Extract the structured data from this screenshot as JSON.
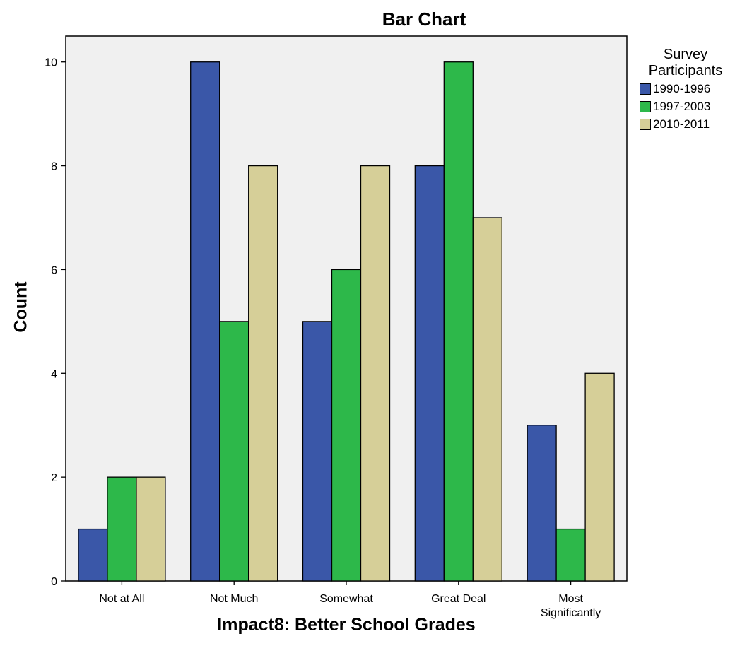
{
  "chart_data": {
    "type": "bar",
    "title": "Bar Chart",
    "xlabel": "Impact8: Better School Grades",
    "ylabel": "Count",
    "categories": [
      "Not at All",
      "Not Much",
      "Somewhat",
      "Great Deal",
      "Most Significantly"
    ],
    "category_lines": [
      [
        "Not at All"
      ],
      [
        "Not Much"
      ],
      [
        "Somewhat"
      ],
      [
        "Great Deal"
      ],
      [
        "Most",
        "Significantly"
      ]
    ],
    "series": [
      {
        "name": "1990-1996",
        "values": [
          1,
          10,
          5,
          8,
          3
        ],
        "color": "#3a57a8"
      },
      {
        "name": "1997-2003",
        "values": [
          2,
          5,
          6,
          10,
          1
        ],
        "color": "#2db84a"
      },
      {
        "name": "2010-2011",
        "values": [
          2,
          8,
          8,
          7,
          4
        ],
        "color": "#d6cf98"
      }
    ],
    "ylim": [
      0,
      10.5
    ],
    "yticks": [
      0,
      2,
      4,
      6,
      8,
      10
    ],
    "legend": {
      "title_lines": [
        "Survey",
        "Participants"
      ],
      "placement": "right"
    },
    "plot_background": "#f0f0f0",
    "grid": false
  }
}
